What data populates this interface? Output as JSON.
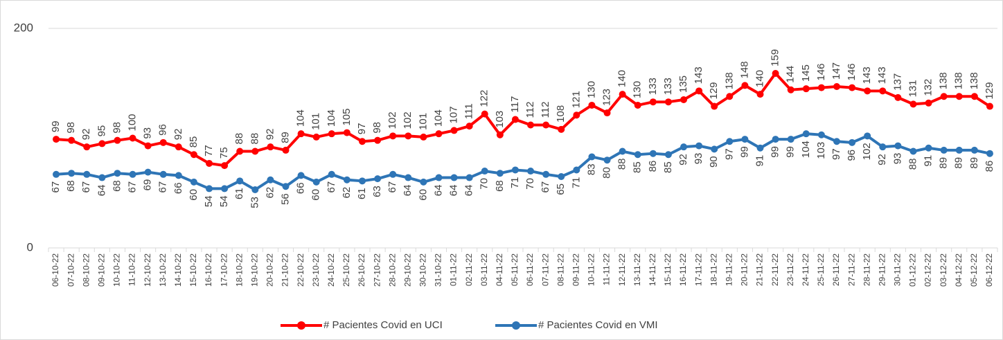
{
  "chart_data": {
    "type": "line",
    "categories": [
      "06-10-22",
      "07-10-22",
      "08-10-22",
      "09-10-22",
      "10-10-22",
      "11-10-22",
      "12-10-22",
      "13-10-22",
      "14-10-22",
      "15-10-22",
      "16-10-22",
      "17-10-22",
      "18-10-22",
      "19-10-22",
      "20-10-22",
      "21-10-22",
      "22-10-22",
      "23-10-22",
      "24-10-22",
      "25-10-22",
      "26-10-22",
      "27-10-22",
      "28-10-22",
      "29-10-22",
      "30-10-22",
      "31-10-22",
      "01-11-22",
      "02-11-22",
      "03-11-22",
      "04-11-22",
      "05-11-22",
      "06-11-22",
      "07-11-22",
      "08-11-22",
      "09-11-22",
      "10-11-22",
      "11-11-22",
      "12-11-22",
      "13-11-22",
      "14-11-22",
      "15-11-22",
      "16-11-22",
      "17-11-22",
      "18-11-22",
      "19-11-22",
      "20-11-22",
      "21-11-22",
      "22-11-22",
      "23-11-22",
      "24-11-22",
      "25-11-22",
      "26-11-22",
      "27-11-22",
      "28-11-22",
      "29-11-22",
      "30-11-22",
      "01-12-22",
      "02-12-22",
      "03-12-22",
      "04-12-22",
      "05-12-22",
      "06-12-22"
    ],
    "series": [
      {
        "name": "# Pacientes Covid en UCI",
        "color": "#ff0000",
        "values": [
          99,
          98,
          92,
          95,
          98,
          100,
          93,
          96,
          92,
          85,
          77,
          75,
          88,
          88,
          92,
          89,
          104,
          101,
          104,
          105,
          97,
          98,
          102,
          102,
          101,
          104,
          107,
          111,
          122,
          103,
          117,
          112,
          112,
          108,
          121,
          130,
          123,
          140,
          130,
          133,
          133,
          135,
          143,
          129,
          138,
          148,
          140,
          159,
          144,
          145,
          146,
          147,
          146,
          143,
          143,
          137,
          131,
          132,
          138,
          138,
          138,
          129
        ]
      },
      {
        "name": "# Pacientes Covid en VMI",
        "color": "#2e75b6",
        "values": [
          67,
          68,
          67,
          64,
          68,
          67,
          69,
          67,
          66,
          60,
          54,
          54,
          61,
          53,
          62,
          56,
          66,
          60,
          67,
          62,
          61,
          63,
          67,
          64,
          60,
          64,
          64,
          64,
          70,
          68,
          71,
          70,
          67,
          65,
          71,
          83,
          80,
          88,
          85,
          86,
          85,
          92,
          93,
          90,
          97,
          99,
          91,
          99,
          99,
          104,
          103,
          97,
          96,
          102,
          92,
          93,
          88,
          91,
          89,
          89,
          89,
          86
        ]
      }
    ],
    "ylim": [
      0,
      200
    ],
    "yticks": [
      0,
      200
    ],
    "grid": true,
    "legend": "bottom"
  }
}
